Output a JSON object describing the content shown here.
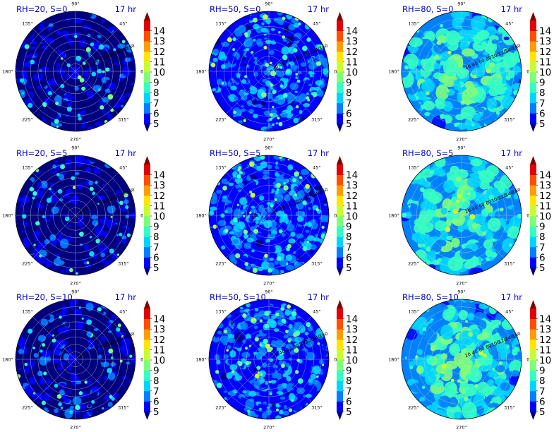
{
  "figure": {
    "time_label": "17 hr",
    "colormap": [
      "#00007f",
      "#0000ff",
      "#0080ff",
      "#00d5ff",
      "#33ffc3",
      "#7dff7a",
      "#c3ff33",
      "#ffe600",
      "#ff9c00",
      "#ff4e00",
      "#e30000",
      "#7f0000"
    ],
    "background_color": "#00007f"
  },
  "chart_data": [
    {
      "type": "heatmap",
      "title": "RH=20, S=0",
      "time": "17 hr",
      "RH": 20,
      "S": 0,
      "mean_level": 5.4,
      "spot_density": 0.55,
      "projection": "polar",
      "angle_ticks": [
        "0°",
        "45°",
        "90°",
        "135°",
        "180°",
        "225°",
        "270°",
        "315°"
      ],
      "radial_ticks": [
        "20",
        "40",
        "60",
        "80",
        "100",
        "120",
        "140",
        "160"
      ],
      "colorbar": {
        "ticks": [
          "5",
          "6",
          "7",
          "8",
          "9",
          "10",
          "11",
          "12",
          "13",
          "14"
        ],
        "range": [
          5,
          14
        ],
        "extend": "both"
      }
    },
    {
      "type": "heatmap",
      "title": "RH=50, S=0",
      "time": "17 hr",
      "RH": 50,
      "S": 0,
      "mean_level": 6.3,
      "spot_density": 0.8,
      "projection": "polar",
      "angle_ticks": [
        "0°",
        "45°",
        "90°",
        "135°",
        "180°",
        "225°",
        "270°",
        "315°"
      ],
      "radial_ticks": [
        "20",
        "40",
        "60",
        "80",
        "100",
        "120",
        "140",
        "160"
      ],
      "colorbar": {
        "ticks": [
          "5",
          "6",
          "7",
          "8",
          "9",
          "10",
          "11",
          "12",
          "13",
          "14"
        ],
        "range": [
          5,
          14
        ],
        "extend": "both"
      }
    },
    {
      "type": "heatmap",
      "title": "RH=80, S=0",
      "time": "17 hr",
      "RH": 80,
      "S": 0,
      "mean_level": 7.6,
      "spot_density": 0.4,
      "projection": "polar",
      "angle_ticks": [
        "0°",
        "45°",
        "90°",
        "135°",
        "180°",
        "225°",
        "270°",
        "315°"
      ],
      "radial_ticks": [
        "20",
        "40",
        "60",
        "80",
        "100",
        "120",
        "140",
        "160"
      ],
      "colorbar": {
        "ticks": [
          "5",
          "6",
          "7",
          "8",
          "9",
          "10",
          "11",
          "12",
          "13",
          "14"
        ],
        "range": [
          5,
          14
        ],
        "extend": "both"
      }
    },
    {
      "type": "heatmap",
      "title": "RH=20, S=5",
      "time": "17 hr",
      "RH": 20,
      "S": 5,
      "mean_level": 5.4,
      "spot_density": 0.55,
      "projection": "polar",
      "angle_ticks": [
        "0°",
        "45°",
        "90°",
        "135°",
        "180°",
        "225°",
        "270°",
        "315°"
      ],
      "radial_ticks": [
        "20",
        "40",
        "60",
        "80",
        "100",
        "120",
        "140",
        "160"
      ],
      "colorbar": {
        "ticks": [
          "5",
          "6",
          "7",
          "8",
          "9",
          "10",
          "11",
          "12",
          "13",
          "14"
        ],
        "range": [
          5,
          14
        ],
        "extend": "both"
      }
    },
    {
      "type": "heatmap",
      "title": "RH=50, S=5",
      "time": "17 hr",
      "RH": 50,
      "S": 5,
      "mean_level": 6.3,
      "spot_density": 0.8,
      "projection": "polar",
      "angle_ticks": [
        "0°",
        "45°",
        "90°",
        "135°",
        "180°",
        "225°",
        "270°",
        "315°"
      ],
      "radial_ticks": [
        "20",
        "40",
        "60",
        "80",
        "100",
        "120",
        "140",
        "160"
      ],
      "colorbar": {
        "ticks": [
          "5",
          "6",
          "7",
          "8",
          "9",
          "10",
          "11",
          "12",
          "13",
          "14"
        ],
        "range": [
          5,
          14
        ],
        "extend": "both"
      }
    },
    {
      "type": "heatmap",
      "title": "RH=80, S=5",
      "time": "17 hr",
      "RH": 80,
      "S": 5,
      "mean_level": 7.6,
      "spot_density": 0.4,
      "projection": "polar",
      "angle_ticks": [
        "0°",
        "45°",
        "90°",
        "135°",
        "180°",
        "225°",
        "270°",
        "315°"
      ],
      "radial_ticks": [
        "20",
        "40",
        "60",
        "80",
        "100",
        "120",
        "140",
        "160"
      ],
      "colorbar": {
        "ticks": [
          "5",
          "6",
          "7",
          "8",
          "9",
          "10",
          "11",
          "12",
          "13",
          "14"
        ],
        "range": [
          5,
          14
        ],
        "extend": "both"
      }
    },
    {
      "type": "heatmap",
      "title": "RH=20, S=10",
      "time": "17 hr",
      "RH": 20,
      "S": 10,
      "mean_level": 5.4,
      "spot_density": 0.55,
      "projection": "polar",
      "angle_ticks": [
        "0°",
        "45°",
        "90°",
        "135°",
        "180°",
        "225°",
        "270°",
        "315°"
      ],
      "radial_ticks": [
        "20",
        "40",
        "60",
        "80",
        "100",
        "120",
        "140",
        "160"
      ],
      "colorbar": {
        "ticks": [
          "5",
          "6",
          "7",
          "8",
          "9",
          "10",
          "11",
          "12",
          "13",
          "14"
        ],
        "range": [
          5,
          14
        ],
        "extend": "both"
      }
    },
    {
      "type": "heatmap",
      "title": "RH=50, S=10",
      "time": "17 hr",
      "RH": 50,
      "S": 10,
      "mean_level": 6.3,
      "spot_density": 0.8,
      "projection": "polar",
      "angle_ticks": [
        "0°",
        "45°",
        "90°",
        "135°",
        "180°",
        "225°",
        "270°",
        "315°"
      ],
      "radial_ticks": [
        "20",
        "40",
        "60",
        "80",
        "100",
        "120",
        "140",
        "160"
      ],
      "colorbar": {
        "ticks": [
          "5",
          "6",
          "7",
          "8",
          "9",
          "10",
          "11",
          "12",
          "13",
          "14"
        ],
        "range": [
          5,
          14
        ],
        "extend": "both"
      }
    },
    {
      "type": "heatmap",
      "title": "RH=80, S=10",
      "time": "17 hr",
      "RH": 80,
      "S": 10,
      "mean_level": 7.6,
      "spot_density": 0.4,
      "projection": "polar",
      "angle_ticks": [
        "0°",
        "45°",
        "90°",
        "135°",
        "180°",
        "225°",
        "270°",
        "315°"
      ],
      "radial_ticks": [
        "20",
        "40",
        "60",
        "80",
        "100",
        "120",
        "140",
        "160"
      ],
      "colorbar": {
        "ticks": [
          "5",
          "6",
          "7",
          "8",
          "9",
          "10",
          "11",
          "12",
          "13",
          "14"
        ],
        "range": [
          5,
          14
        ],
        "extend": "both"
      }
    }
  ]
}
